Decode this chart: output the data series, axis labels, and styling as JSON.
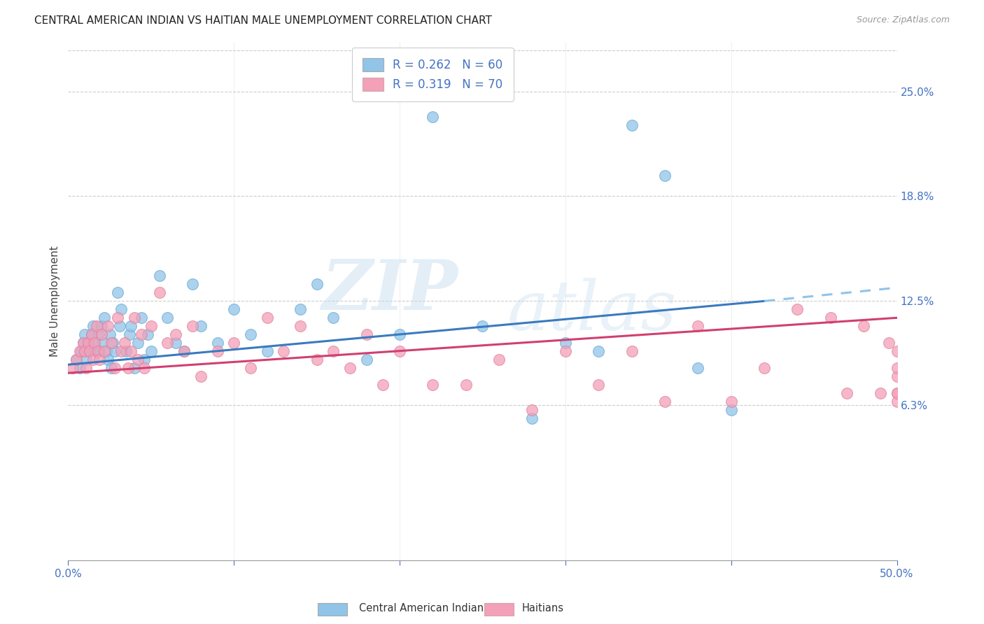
{
  "title": "CENTRAL AMERICAN INDIAN VS HAITIAN MALE UNEMPLOYMENT CORRELATION CHART",
  "source": "Source: ZipAtlas.com",
  "ylabel": "Male Unemployment",
  "ytick_labels": [
    "6.3%",
    "12.5%",
    "18.8%",
    "25.0%"
  ],
  "ytick_values": [
    0.063,
    0.125,
    0.188,
    0.25
  ],
  "xlim": [
    0.0,
    0.5
  ],
  "ylim": [
    -0.03,
    0.28
  ],
  "legend_entry1": "R = 0.262   N = 60",
  "legend_entry2": "R = 0.319   N = 70",
  "legend_label1": "Central American Indians",
  "legend_label2": "Haitians",
  "color_blue": "#90c4e8",
  "color_pink": "#f4a0b8",
  "trendline_blue": "#3a7abf",
  "trendline_pink": "#d04070",
  "trendline_dashed": "#90c4e8",
  "watermark_zip": "ZIP",
  "watermark_atlas": "atlas",
  "blue_x": [
    0.005,
    0.007,
    0.008,
    0.009,
    0.01,
    0.01,
    0.011,
    0.012,
    0.013,
    0.014,
    0.015,
    0.016,
    0.017,
    0.018,
    0.019,
    0.02,
    0.021,
    0.022,
    0.023,
    0.024,
    0.025,
    0.026,
    0.027,
    0.028,
    0.03,
    0.031,
    0.032,
    0.035,
    0.037,
    0.038,
    0.04,
    0.042,
    0.044,
    0.046,
    0.048,
    0.05,
    0.055,
    0.06,
    0.065,
    0.07,
    0.075,
    0.08,
    0.09,
    0.1,
    0.11,
    0.12,
    0.14,
    0.15,
    0.16,
    0.18,
    0.2,
    0.22,
    0.25,
    0.28,
    0.3,
    0.32,
    0.34,
    0.36,
    0.38,
    0.4
  ],
  "blue_y": [
    0.09,
    0.085,
    0.095,
    0.1,
    0.095,
    0.105,
    0.09,
    0.1,
    0.095,
    0.105,
    0.11,
    0.1,
    0.095,
    0.105,
    0.095,
    0.11,
    0.1,
    0.115,
    0.095,
    0.09,
    0.105,
    0.085,
    0.1,
    0.095,
    0.13,
    0.11,
    0.12,
    0.095,
    0.105,
    0.11,
    0.085,
    0.1,
    0.115,
    0.09,
    0.105,
    0.095,
    0.14,
    0.115,
    0.1,
    0.095,
    0.135,
    0.11,
    0.1,
    0.12,
    0.105,
    0.095,
    0.12,
    0.135,
    0.115,
    0.09,
    0.105,
    0.235,
    0.11,
    0.055,
    0.1,
    0.095,
    0.23,
    0.2,
    0.085,
    0.06
  ],
  "pink_x": [
    0.003,
    0.005,
    0.007,
    0.009,
    0.01,
    0.011,
    0.012,
    0.013,
    0.014,
    0.015,
    0.016,
    0.017,
    0.018,
    0.019,
    0.02,
    0.022,
    0.024,
    0.026,
    0.028,
    0.03,
    0.032,
    0.034,
    0.036,
    0.038,
    0.04,
    0.042,
    0.044,
    0.046,
    0.05,
    0.055,
    0.06,
    0.065,
    0.07,
    0.075,
    0.08,
    0.09,
    0.1,
    0.11,
    0.12,
    0.13,
    0.14,
    0.15,
    0.16,
    0.17,
    0.18,
    0.19,
    0.2,
    0.22,
    0.24,
    0.26,
    0.28,
    0.3,
    0.32,
    0.34,
    0.36,
    0.38,
    0.4,
    0.42,
    0.44,
    0.46,
    0.47,
    0.48,
    0.49,
    0.495,
    0.5,
    0.5,
    0.5,
    0.5,
    0.5,
    0.5
  ],
  "pink_y": [
    0.085,
    0.09,
    0.095,
    0.1,
    0.095,
    0.085,
    0.1,
    0.095,
    0.105,
    0.09,
    0.1,
    0.11,
    0.095,
    0.09,
    0.105,
    0.095,
    0.11,
    0.1,
    0.085,
    0.115,
    0.095,
    0.1,
    0.085,
    0.095,
    0.115,
    0.09,
    0.105,
    0.085,
    0.11,
    0.13,
    0.1,
    0.105,
    0.095,
    0.11,
    0.08,
    0.095,
    0.1,
    0.085,
    0.115,
    0.095,
    0.11,
    0.09,
    0.095,
    0.085,
    0.105,
    0.075,
    0.095,
    0.075,
    0.075,
    0.09,
    0.06,
    0.095,
    0.075,
    0.095,
    0.065,
    0.11,
    0.065,
    0.085,
    0.12,
    0.115,
    0.07,
    0.11,
    0.07,
    0.1,
    0.07,
    0.08,
    0.085,
    0.065,
    0.07,
    0.095
  ],
  "trendline_blue_x0": 0.0,
  "trendline_blue_y0": 0.087,
  "trendline_blue_x1": 0.42,
  "trendline_blue_y1": 0.125,
  "trendline_dash_x0": 0.42,
  "trendline_dash_y0": 0.125,
  "trendline_dash_x1": 0.5,
  "trendline_dash_y1": 0.133,
  "trendline_pink_x0": 0.0,
  "trendline_pink_y0": 0.082,
  "trendline_pink_x1": 0.5,
  "trendline_pink_y1": 0.115
}
